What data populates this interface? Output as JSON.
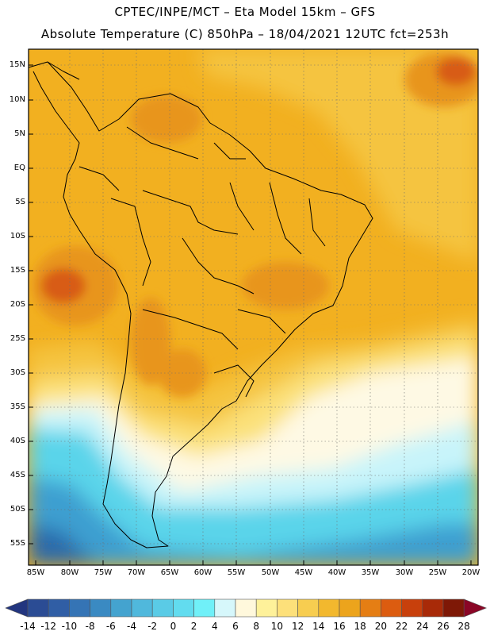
{
  "header": {
    "line1": "CPTEC/INPE/MCT –  Eta Model 15km – GFS",
    "line2": "Absolute Temperature (C) 850hPa – 18/04/2021 12UTC fct=253h"
  },
  "map": {
    "lat_labels": [
      "15N",
      "10N",
      "5N",
      "EQ",
      "5S",
      "10S",
      "15S",
      "20S",
      "25S",
      "30S",
      "35S",
      "40S",
      "45S",
      "50S",
      "55S"
    ],
    "lon_labels": [
      "85W",
      "80W",
      "75W",
      "70W",
      "65W",
      "60W",
      "55W",
      "50W",
      "45W",
      "40W",
      "35W",
      "30W",
      "25W",
      "20W"
    ],
    "grid": "dotted",
    "colors": {
      "warm_orange": "#e8951c",
      "orange": "#f2b020",
      "light_orange": "#f5c440",
      "yellow": "#fbe17a",
      "pale_yellow": "#fff7c6",
      "cream": "#fef9e4",
      "light_cyan": "#c8f4fa",
      "cyan": "#5ad4ea",
      "blue": "#3d9fd0",
      "dark_blue": "#2a6aab",
      "red_orange": "#d85c12",
      "coast": "#000000"
    }
  },
  "colorbar": {
    "labels": [
      "-14",
      "-12",
      "-10",
      "-8",
      "-6",
      "-4",
      "-2",
      "0",
      "2",
      "4",
      "6",
      "8",
      "10",
      "12",
      "14",
      "16",
      "18",
      "20",
      "22",
      "24",
      "26",
      "28"
    ],
    "colors": [
      "#22357f",
      "#2b4c94",
      "#305ea5",
      "#3574b5",
      "#3a8ac2",
      "#44a3cf",
      "#50b8dc",
      "#5acbe6",
      "#62dcef",
      "#70f0f8",
      "#d6f7fb",
      "#fff8dc",
      "#fef19a",
      "#fde07a",
      "#f7cd50",
      "#f2b82e",
      "#eca41c",
      "#e57e14",
      "#dc5c10",
      "#c8400c",
      "#a82a08",
      "#7e1806",
      "#8a0626"
    ]
  }
}
